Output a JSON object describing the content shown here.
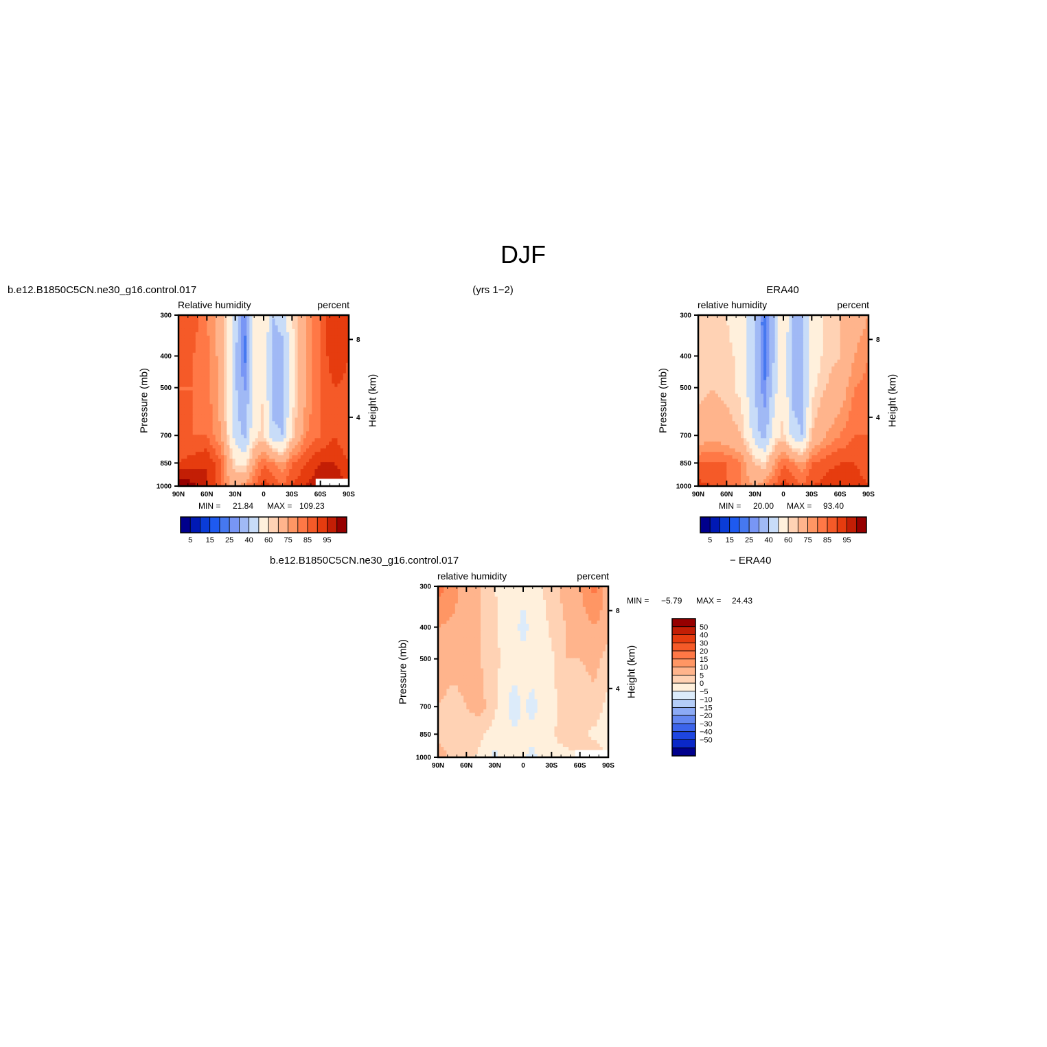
{
  "header": {
    "title": "DJF",
    "case_left": "b.e12.B1850C5CN.ne30_g16.control.017",
    "years": "(yrs 1−2)",
    "case_right": "ERA40",
    "diff_case_left": "b.e12.B1850C5CN.ne30_g16.control.017",
    "diff_case_right": "− ERA40"
  },
  "panels": {
    "model": {
      "left_title": "Relative humidity",
      "right_title": "percent",
      "ylabel": "Pressure (mb)",
      "y2label": "Height (km)",
      "min_label": "MIN =",
      "min_value": "21.84",
      "max_label": "MAX =",
      "max_value": "109.23"
    },
    "obs": {
      "left_title": "relative humidity",
      "right_title": "percent",
      "ylabel": "Pressure (mb)",
      "y2label": "Height (km)",
      "min_label": "MIN =",
      "min_value": "20.00",
      "max_label": "MAX =",
      "max_value": "93.40"
    },
    "diff": {
      "left_title": "relative humidity",
      "right_title": "percent",
      "ylabel": "Pressure (mb)",
      "y2label": "Height (km)",
      "min_label": "MIN =",
      "min_value": "−5.79",
      "max_label": "MAX =",
      "max_value": "24.43"
    }
  },
  "colorbars": {
    "abs_labels": [
      "5",
      "15",
      "25",
      "40",
      "60",
      "75",
      "85",
      "95"
    ],
    "diff_labels": [
      "50",
      "40",
      "30",
      "20",
      "15",
      "10",
      "5",
      "0",
      "−5",
      "−10",
      "−15",
      "−20",
      "−30",
      "−40",
      "−50"
    ]
  },
  "colors": {
    "abs_scale": [
      "#00008c",
      "#0019b4",
      "#0a3cd7",
      "#1e5af0",
      "#4678f0",
      "#7896f5",
      "#a0b9f5",
      "#c8dcf8",
      "#fff0dc",
      "#ffd2b4",
      "#ffb48c",
      "#ff9664",
      "#ff7846",
      "#f55a28",
      "#e63c0f",
      "#c31e05",
      "#960000"
    ],
    "diff_scale": [
      "#960000",
      "#c31e05",
      "#e63c0f",
      "#f55a28",
      "#ff7846",
      "#ff9664",
      "#ffb48c",
      "#ffd2b4",
      "#fff0dc",
      "#dcebfa",
      "#b4cdf8",
      "#8caaf5",
      "#6487f0",
      "#3c64eb",
      "#1e46e1",
      "#0a28c8",
      "#00008c"
    ]
  },
  "chart_data": [
    {
      "type": "heatmap",
      "name": "model",
      "x_ticks": [
        "90N",
        "60N",
        "30N",
        "0",
        "30S",
        "60S",
        "90S"
      ],
      "y_ticks": [
        "300",
        "400",
        "500",
        "700",
        "850",
        "1000"
      ],
      "y2_ticks": [
        "8",
        "4"
      ],
      "xlim": [
        90,
        -90
      ],
      "ylim": [
        1000,
        300
      ],
      "y_log": true,
      "lat": [
        90,
        75,
        60,
        45,
        30,
        20,
        10,
        0,
        -10,
        -20,
        -30,
        -45,
        -60,
        -75,
        -90
      ],
      "lev": [
        300,
        400,
        500,
        700,
        850,
        1000
      ],
      "values": [
        [
          85,
          88,
          80,
          70,
          45,
          25,
          55,
          60,
          40,
          45,
          60,
          75,
          85,
          95,
          90
        ],
        [
          85,
          85,
          82,
          72,
          42,
          22,
          55,
          60,
          35,
          35,
          55,
          75,
          85,
          95,
          90
        ],
        [
          85,
          85,
          82,
          72,
          42,
          28,
          55,
          60,
          35,
          35,
          55,
          75,
          85,
          90,
          88
        ],
        [
          85,
          85,
          85,
          75,
          45,
          38,
          58,
          62,
          42,
          40,
          62,
          80,
          85,
          90,
          85
        ],
        [
          90,
          92,
          95,
          85,
          60,
          55,
          75,
          85,
          80,
          75,
          85,
          90,
          95,
          95,
          90
        ],
        [
          105,
          102,
          95,
          85,
          70,
          80,
          85,
          92,
          90,
          85,
          90,
          95,
          100,
          100,
          95
        ]
      ],
      "missing_region": {
        "lat": [
          -55,
          -90
        ],
        "lev": [
          950,
          1000
        ]
      }
    },
    {
      "type": "heatmap",
      "name": "obs",
      "x_ticks": [
        "90N",
        "60N",
        "30N",
        "0",
        "30S",
        "60S",
        "90S"
      ],
      "y_ticks": [
        "300",
        "400",
        "500",
        "700",
        "850",
        "1000"
      ],
      "y2_ticks": [
        "8",
        "4"
      ],
      "xlim": [
        90,
        -90
      ],
      "ylim": [
        1000,
        300
      ],
      "y_log": true,
      "lat": [
        90,
        75,
        60,
        45,
        30,
        20,
        10,
        0,
        -10,
        -20,
        -30,
        -45,
        -60,
        -75,
        -90
      ],
      "lev": [
        300,
        400,
        500,
        700,
        850,
        1000
      ],
      "values": [
        [
          60,
          62,
          60,
          55,
          40,
          20,
          40,
          60,
          40,
          40,
          55,
          62,
          65,
          70,
          75
        ],
        [
          62,
          62,
          62,
          58,
          40,
          20,
          40,
          60,
          35,
          35,
          55,
          62,
          65,
          75,
          80
        ],
        [
          62,
          65,
          62,
          58,
          40,
          25,
          45,
          60,
          35,
          35,
          58,
          65,
          70,
          80,
          82
        ],
        [
          70,
          72,
          70,
          65,
          45,
          35,
          55,
          62,
          45,
          40,
          65,
          75,
          80,
          85,
          85
        ],
        [
          85,
          85,
          85,
          80,
          65,
          60,
          75,
          85,
          80,
          75,
          85,
          88,
          90,
          90,
          88
        ],
        [
          92,
          90,
          85,
          80,
          75,
          80,
          85,
          92,
          90,
          85,
          90,
          92,
          95,
          92,
          90
        ]
      ]
    },
    {
      "type": "heatmap",
      "name": "diff",
      "x_ticks": [
        "90N",
        "60N",
        "30N",
        "0",
        "30S",
        "60S",
        "90S"
      ],
      "y_ticks": [
        "300",
        "400",
        "500",
        "700",
        "850",
        "1000"
      ],
      "y2_ticks": [
        "8",
        "4"
      ],
      "xlim": [
        90,
        -90
      ],
      "ylim": [
        1000,
        300
      ],
      "y_log": true,
      "lat": [
        90,
        75,
        60,
        45,
        30,
        20,
        10,
        0,
        -10,
        -20,
        -30,
        -45,
        -60,
        -75,
        -90
      ],
      "lev": [
        300,
        400,
        500,
        700,
        850,
        1000
      ],
      "values": [
        [
          22,
          18,
          12,
          10,
          5,
          4,
          3,
          2,
          3,
          5,
          8,
          12,
          15,
          22,
          12
        ],
        [
          15,
          14,
          12,
          10,
          6,
          3,
          2,
          -2,
          2,
          3,
          6,
          10,
          12,
          15,
          12
        ],
        [
          14,
          12,
          12,
          10,
          7,
          3,
          3,
          2,
          3,
          3,
          4,
          10,
          10,
          12,
          8
        ],
        [
          10,
          8,
          10,
          12,
          6,
          2,
          -3,
          1,
          -2,
          2,
          3,
          8,
          6,
          8,
          3
        ],
        [
          6,
          7,
          9,
          6,
          3,
          2,
          1,
          1,
          2,
          3,
          4,
          8,
          6,
          4,
          2
        ],
        [
          15,
          8,
          6,
          4,
          -2,
          2,
          3,
          1,
          -2,
          2,
          3,
          3,
          5,
          8,
          5
        ]
      ],
      "missing_region": {
        "lat": [
          -55,
          -90
        ],
        "lev": [
          950,
          1000
        ]
      }
    }
  ]
}
